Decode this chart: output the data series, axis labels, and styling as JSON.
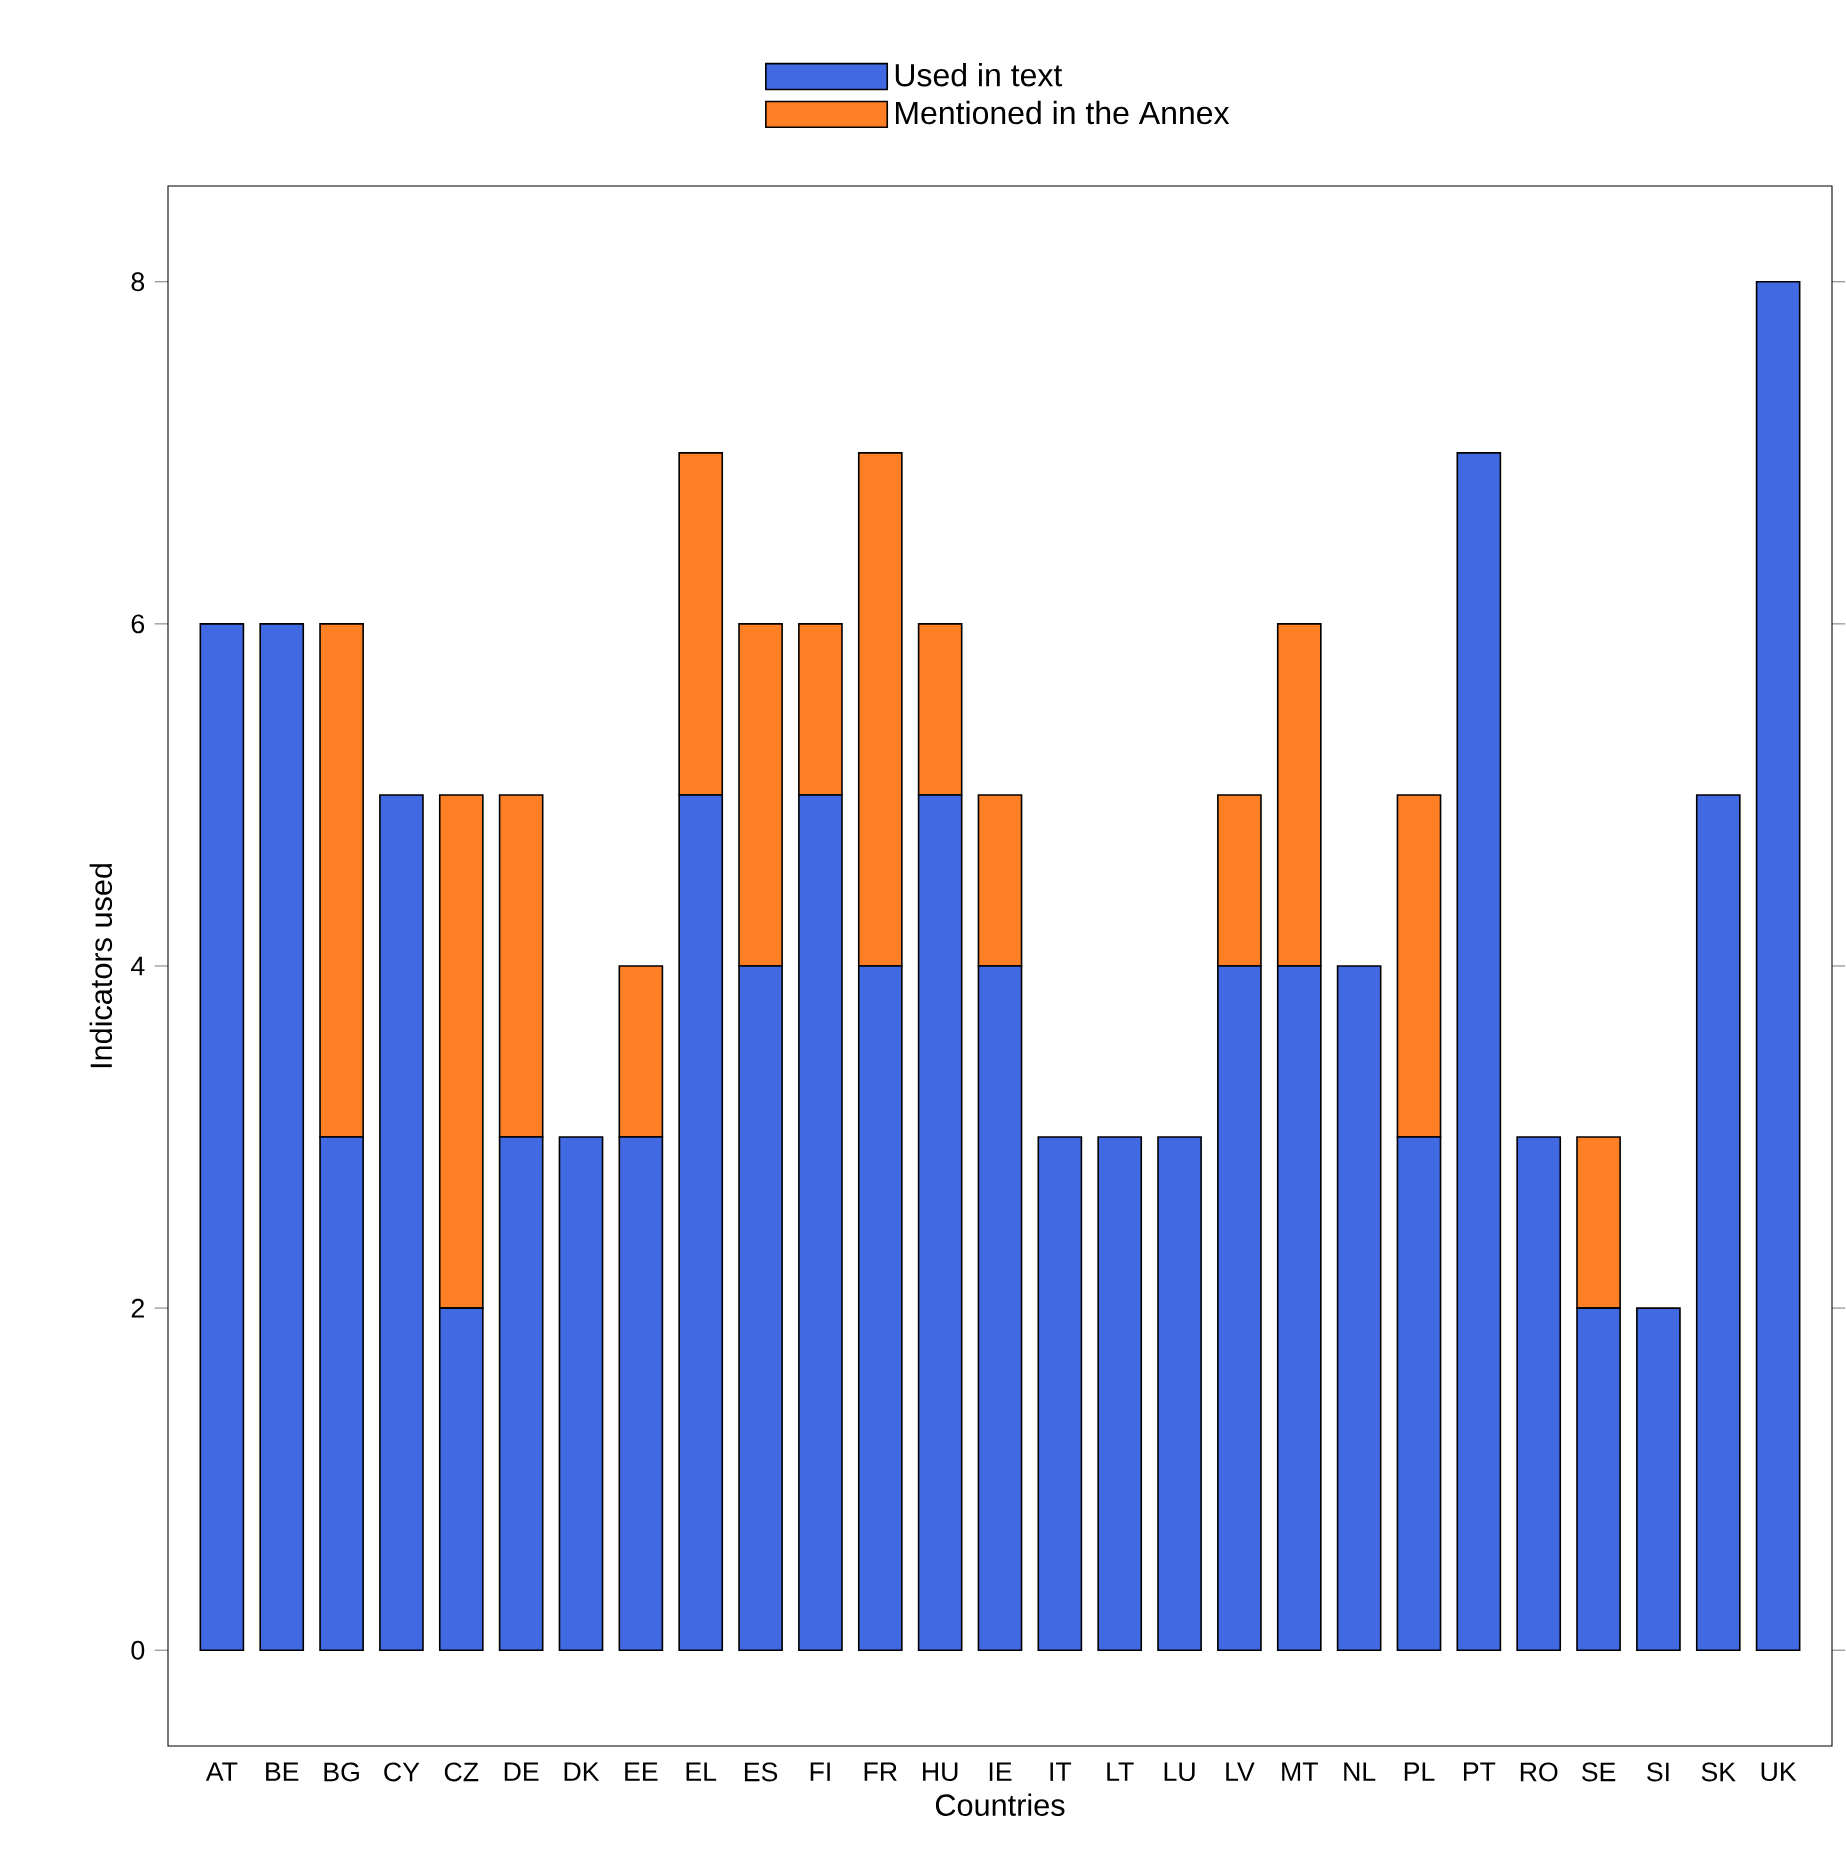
{
  "chart_data": {
    "type": "bar",
    "stacked": true,
    "xlabel": "Countries",
    "ylabel": "Indicators used",
    "categories": [
      "AT",
      "BE",
      "BG",
      "CY",
      "CZ",
      "DE",
      "DK",
      "EE",
      "EL",
      "ES",
      "FI",
      "FR",
      "HU",
      "IE",
      "IT",
      "LT",
      "LU",
      "LV",
      "MT",
      "NL",
      "PL",
      "PT",
      "RO",
      "SE",
      "SI",
      "SK",
      "UK"
    ],
    "series": [
      {
        "name": "Used in text",
        "color": "#4169e1",
        "values": [
          6,
          6,
          3,
          5,
          2,
          3,
          3,
          3,
          5,
          4,
          5,
          4,
          5,
          4,
          3,
          3,
          3,
          4,
          4,
          4,
          3,
          7,
          3,
          2,
          2,
          5,
          8
        ]
      },
      {
        "name": "Mentioned in the Annex",
        "color": "#ff7f24",
        "values": [
          0,
          0,
          3,
          0,
          3,
          2,
          0,
          1,
          2,
          2,
          1,
          3,
          1,
          1,
          0,
          0,
          0,
          1,
          2,
          0,
          2,
          0,
          0,
          1,
          0,
          0,
          0
        ]
      }
    ],
    "ylim": [
      -0.56,
      8.56
    ],
    "yticks": [
      0,
      2,
      4,
      6,
      8
    ],
    "legend": "top"
  }
}
